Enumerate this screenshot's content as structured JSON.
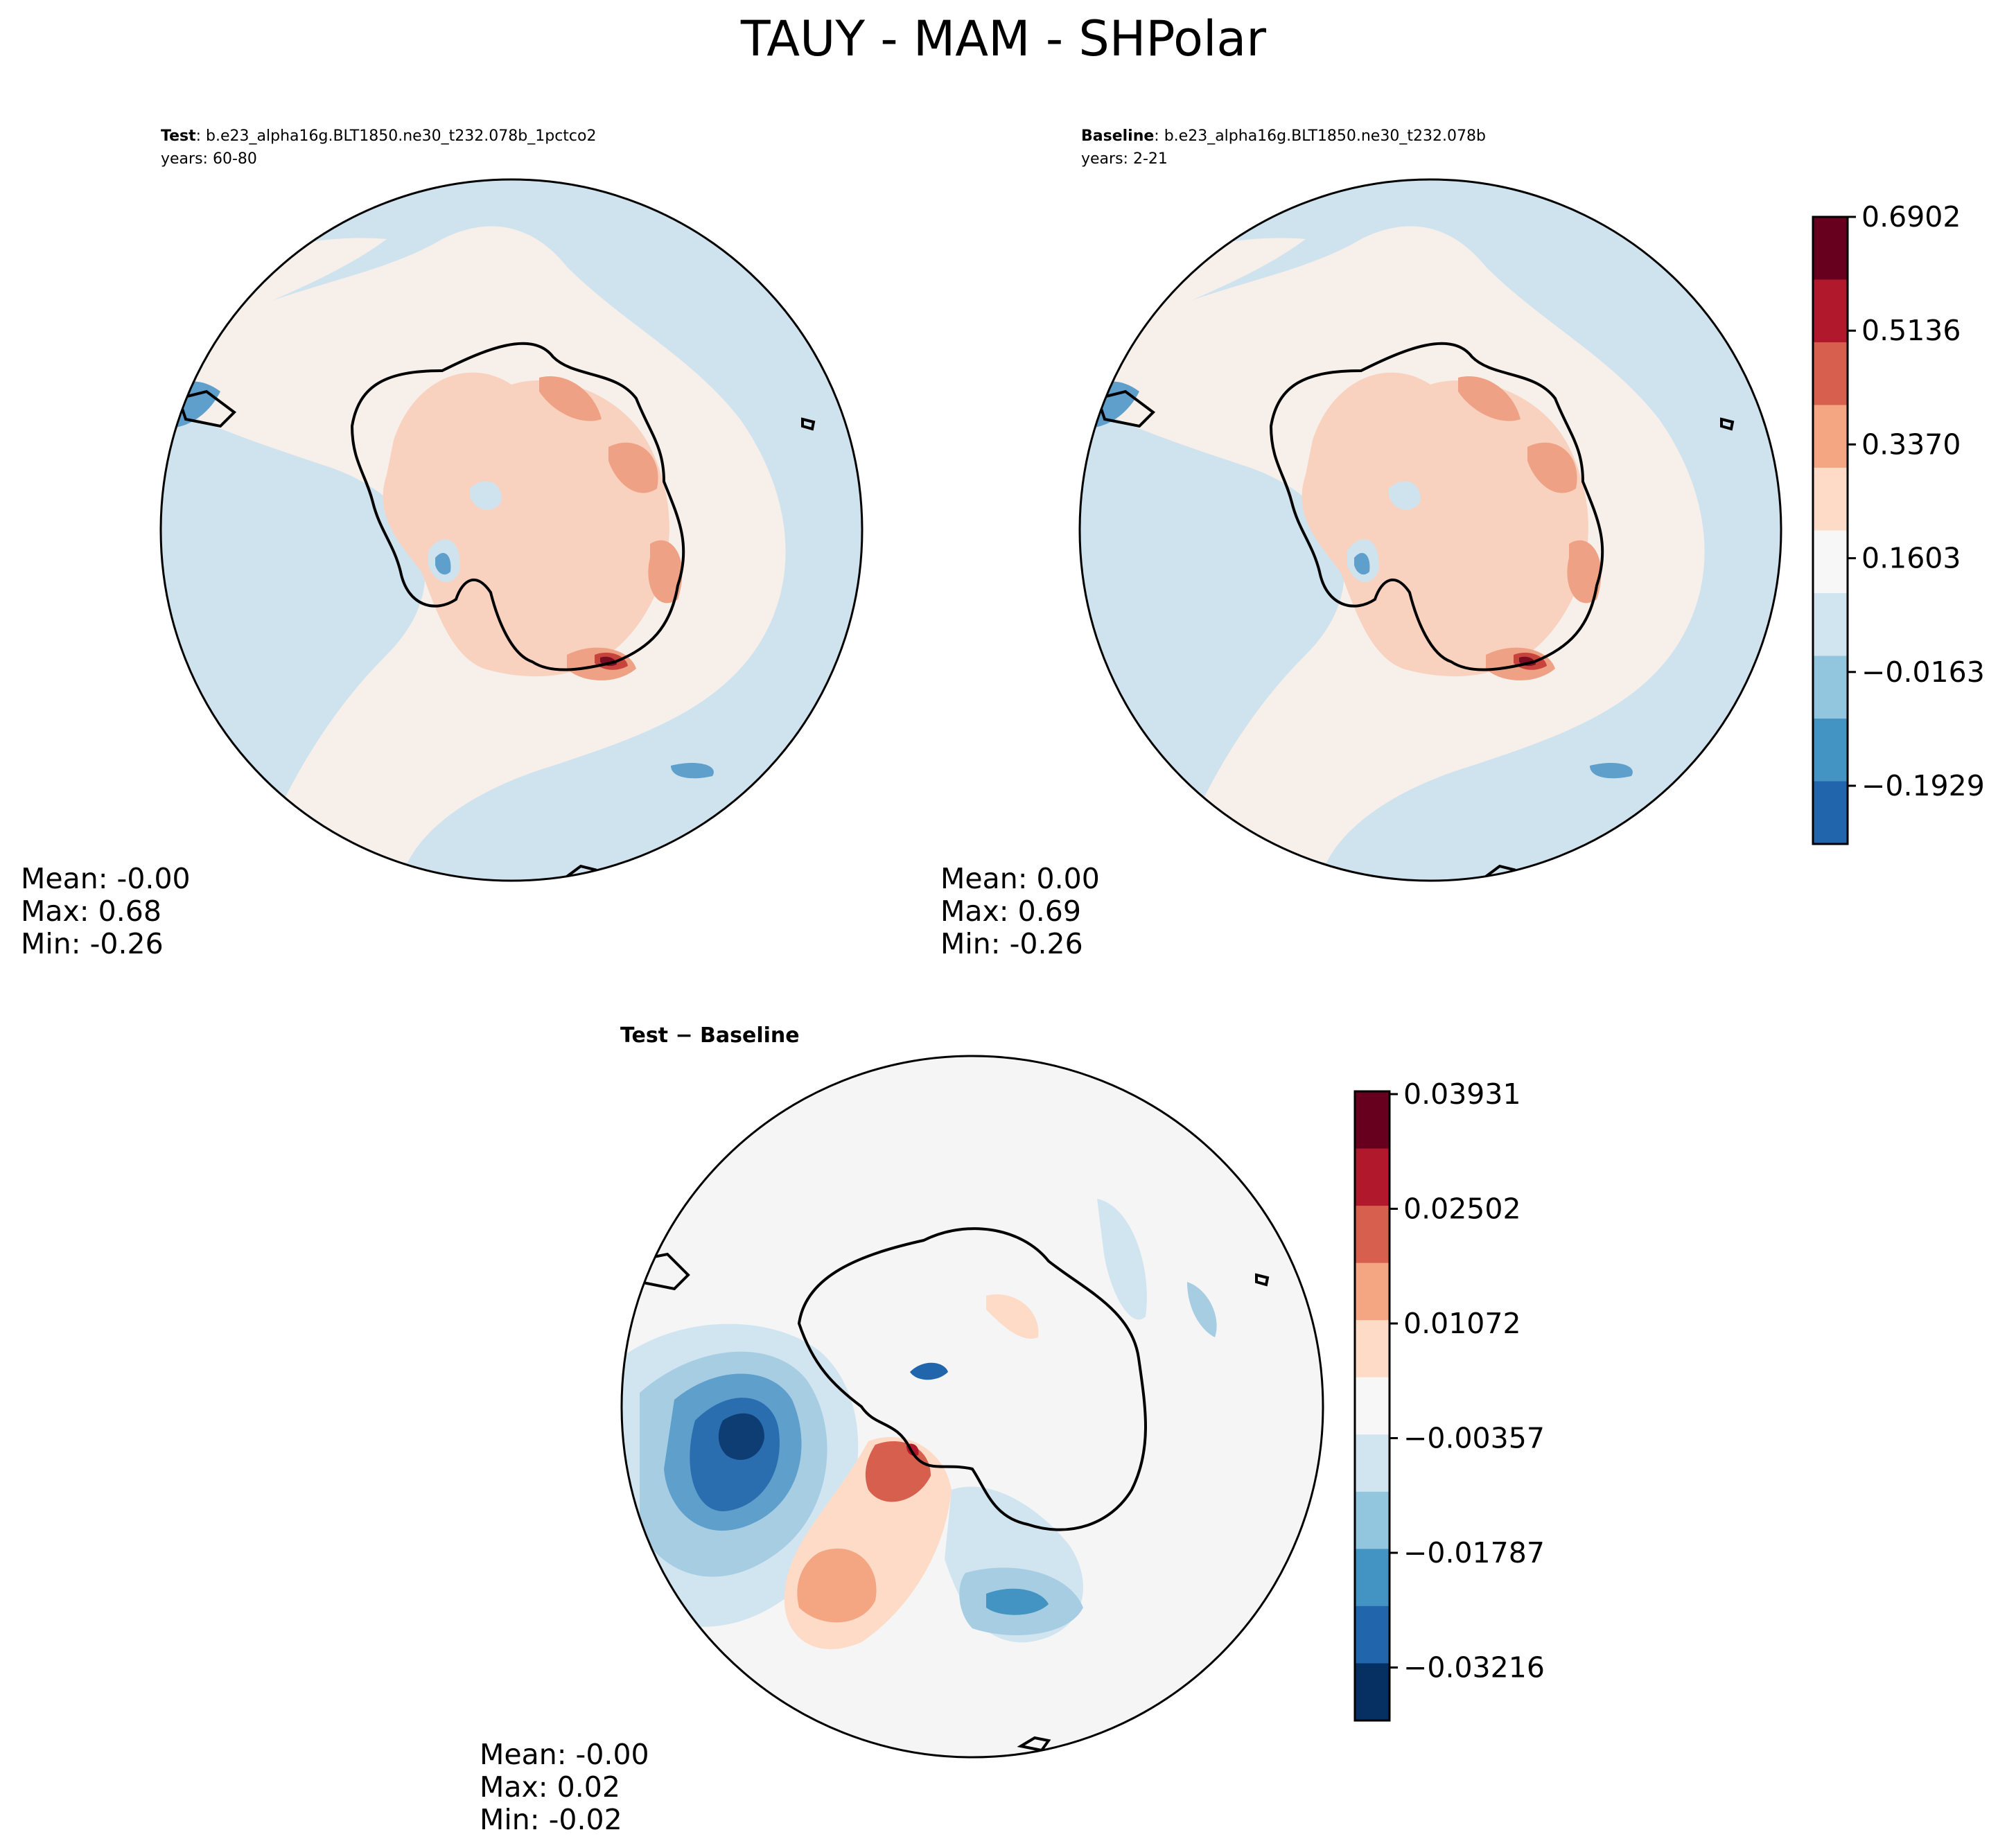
{
  "figure": {
    "title": "TAUY - MAM - SHPolar"
  },
  "panels": {
    "test": {
      "label_bold": "Test",
      "case": ": b.e23_alpha16g.BLT1850.ne30_t232.078b_1pctco2",
      "years": "years: 60-80",
      "stats": {
        "mean": "Mean: -0.00",
        "max": "Max:  0.68",
        "min": "Min: -0.26"
      }
    },
    "baseline": {
      "label_bold": "Baseline",
      "case": ": b.e23_alpha16g.BLT1850.ne30_t232.078b",
      "years": "years: 2-21",
      "stats": {
        "mean": "Mean:  0.00",
        "max": "Max:  0.69",
        "min": "Min: -0.26"
      }
    },
    "diff": {
      "label": "Test − Baseline",
      "stats": {
        "mean": "Mean: -0.00",
        "max": "Max:  0.02",
        "min": "Min: -0.02"
      }
    }
  },
  "colorbars": {
    "main": {
      "ticks": [
        "0.6902",
        "0.5136",
        "0.3370",
        "0.1603",
        "−0.0163",
        "−0.1929"
      ],
      "colors": [
        "#67001f",
        "#b2182b",
        "#d6604d",
        "#f4a582",
        "#fddbc7",
        "#f7f7f7",
        "#d1e5f0",
        "#92c5de",
        "#4393c3",
        "#2166ac"
      ]
    },
    "diff": {
      "ticks": [
        "0.03931",
        "0.02502",
        "0.01072",
        "−0.00357",
        "−0.01787",
        "−0.03216"
      ],
      "colors": [
        "#67001f",
        "#b2182b",
        "#d6604d",
        "#f4a582",
        "#fddbc7",
        "#f7f7f7",
        "#d1e5f0",
        "#92c5de",
        "#4393c3",
        "#2166ac",
        "#053061"
      ]
    }
  },
  "map_colors": {
    "ocean_blue": "#cfe3ef",
    "ocean_pale": "#f7efea",
    "light_red": "#f8d2bf",
    "mid_red": "#eea184",
    "strong_red": "#c7443d",
    "dark_red": "#7a0d22",
    "mid_blue": "#5e9fcc",
    "dark_blue": "#1c5c9e",
    "deep_blue": "#0d3d73",
    "pale_blue": "#a7cde3",
    "neutral": "#f5f5f5"
  }
}
